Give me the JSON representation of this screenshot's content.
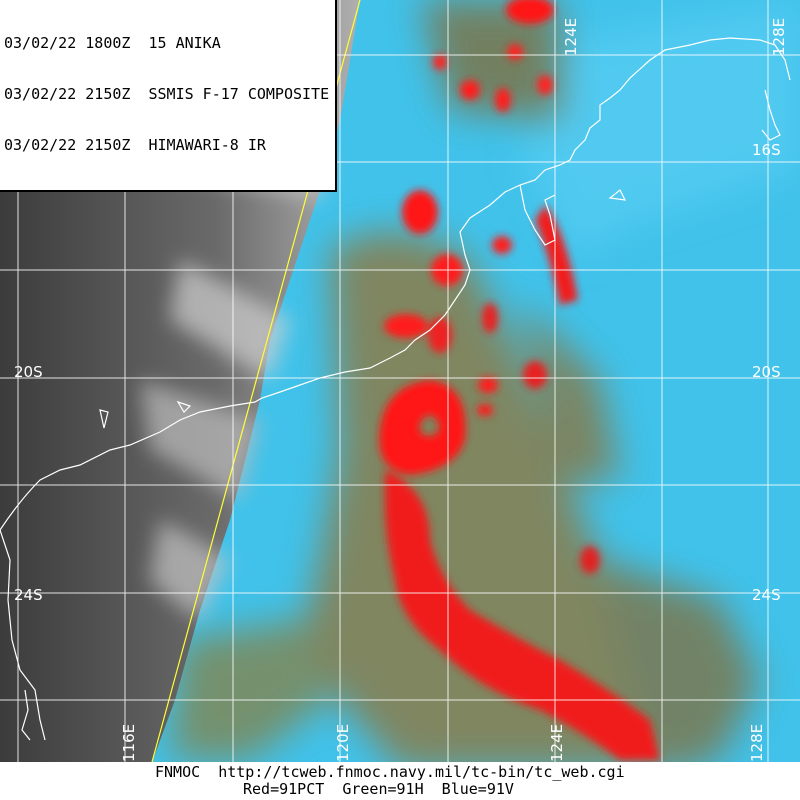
{
  "header": {
    "line1": "03/02/22 1800Z  15 ANIKA",
    "line2": "03/02/22 2150Z  SSMIS F-17 COMPOSITE",
    "line3": "03/02/22 2150Z  HIMAWARI-8 IR"
  },
  "footer": {
    "line1": "FNMOC  http://tcweb.fnmoc.navy.mil/tc-bin/tc_web.cgi",
    "line2": "Red=91PCT  Green=91H  Blue=91V"
  },
  "lat_labels": [
    "16S",
    "20S",
    "24S"
  ],
  "lon_labels": [
    "116E",
    "120E",
    "124E",
    "128E"
  ],
  "colors": {
    "ocean_cyan": "#3fc0e8",
    "ir_gray": "#5a5a5a",
    "convection_red": "#ff1a1a",
    "swath_edge": "#ffff33",
    "grid": "#ffffff"
  },
  "storm_name": "15 ANIKA"
}
